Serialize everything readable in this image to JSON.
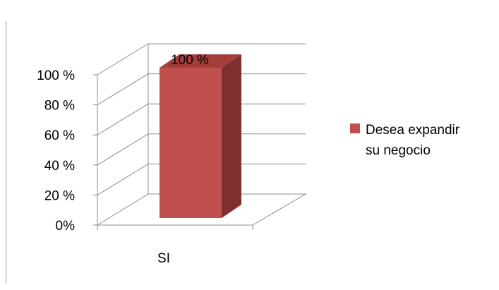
{
  "chart_data": {
    "type": "bar",
    "categories": [
      "SI"
    ],
    "series": [
      {
        "name": "Desea expandir su negocio",
        "values": [
          100
        ]
      }
    ],
    "data_labels": [
      "100  %"
    ],
    "y_ticks": [
      "0%",
      "20 %",
      "40 %",
      "60 %",
      "80 %",
      "100 %"
    ],
    "ylim": [
      0,
      100
    ],
    "grid": true,
    "legend": "right",
    "style": "3d-column",
    "colors": {
      "bar_front": "#C0504D",
      "bar_side": "#7F2F2D",
      "bar_top": "#A53E3B",
      "gridline": "#8c8c8c"
    }
  },
  "legend": {
    "label": "Desea expandir su negocio"
  }
}
